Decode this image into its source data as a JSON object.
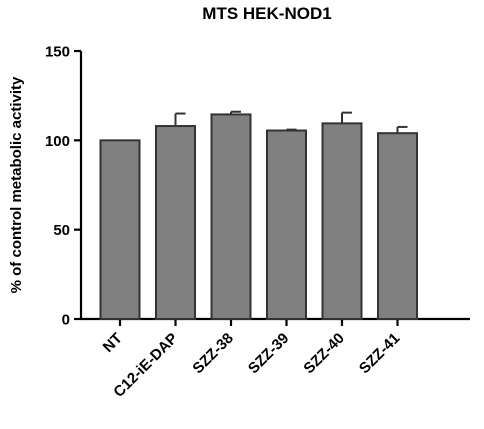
{
  "chart_data": {
    "type": "bar",
    "title": "MTS HEK-NOD1",
    "xlabel": "",
    "ylabel": "% of control metabolic activity",
    "ylim": [
      0,
      150
    ],
    "yticks": [
      0,
      50,
      100,
      150
    ],
    "categories": [
      "NT",
      "C12-iE-DAP",
      "SZZ-38",
      "SZZ-39",
      "SZZ-40",
      "SZZ-41"
    ],
    "values": [
      100,
      108,
      114.5,
      105.5,
      109.5,
      104
    ],
    "errors": [
      0,
      7,
      1.5,
      0.5,
      6,
      3.5
    ],
    "bar_color": "#808080",
    "edge_color": "#333333",
    "grid": false,
    "legend": "none"
  }
}
